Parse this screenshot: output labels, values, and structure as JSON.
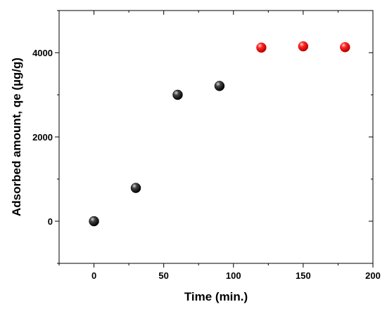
{
  "chart_data": {
    "type": "scatter",
    "xlabel": "Time (min.)",
    "ylabel": "Adsorbed amount, qe (µg/g)",
    "xlim": [
      -25,
      200
    ],
    "ylim": [
      -1000,
      5000
    ],
    "xticks": [
      0,
      50,
      100,
      150,
      200
    ],
    "yticks": [
      0,
      2000,
      4000
    ],
    "grid": false,
    "series": [
      {
        "color": "#000000",
        "x": [
          0,
          30,
          60,
          90
        ],
        "y": [
          0,
          790,
          3000,
          3210
        ]
      },
      {
        "color": "#ff0000",
        "x": [
          120,
          150,
          180
        ],
        "y": [
          4120,
          4150,
          4130
        ]
      }
    ]
  }
}
